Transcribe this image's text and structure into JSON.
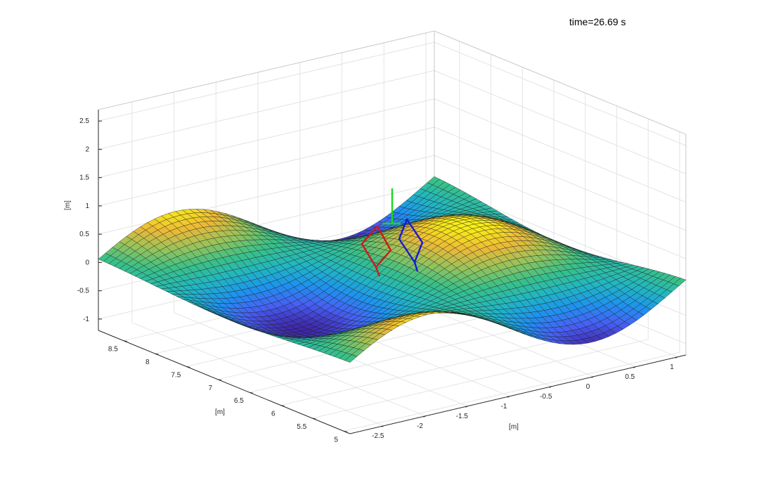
{
  "time_label": "time=26.69 s",
  "chart_data": {
    "type": "surface",
    "title": "",
    "xlabel": "[m]",
    "ylabel": "[m]",
    "zlabel": "[m]",
    "x_ticks": [
      "-2.5",
      "-2",
      "-1.5",
      "-1",
      "-0.5",
      "0",
      "0.5",
      "1"
    ],
    "y_ticks": [
      "5",
      "5.5",
      "6",
      "6.5",
      "7",
      "7.5",
      "8",
      "8.5"
    ],
    "z_ticks": [
      "-1",
      "-0.5",
      "0",
      "0.5",
      "1",
      "1.5",
      "2",
      "2.5"
    ],
    "xlim": [
      -2.9,
      1.1
    ],
    "ylim": [
      4.9,
      8.9
    ],
    "zlim": [
      -1.2,
      2.7
    ],
    "grid": true,
    "colormap": "parula",
    "colormap_colors": [
      "#3e26a8",
      "#4760f5",
      "#1d93ee",
      "#21b6c2",
      "#39c088",
      "#97c35b",
      "#ecb937",
      "#f9f214"
    ],
    "surface_function": "z = 0.6*sin(1.6*(x+1)) * cos(1.4*(y-6.9))",
    "surface_grid": [
      48,
      48
    ],
    "frames": [
      {
        "name": "red-frame",
        "color": "#d01818"
      },
      {
        "name": "blue-frame",
        "color": "#1818d8"
      },
      {
        "name": "green-axis",
        "color": "#18d818"
      }
    ]
  }
}
